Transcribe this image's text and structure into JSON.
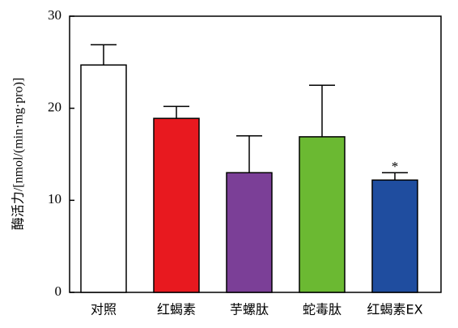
{
  "chart_data": {
    "type": "bar",
    "y_label": "酶活力/[nmol/(min·mg·pro)]",
    "categories": [
      "对照",
      "红蝎素",
      "芋螺肽",
      "蛇毒肽",
      "红蝎素EX"
    ],
    "values": [
      24.7,
      18.9,
      13.0,
      16.9,
      12.2
    ],
    "errors": [
      2.2,
      1.3,
      4.0,
      5.6,
      0.8
    ],
    "colors": [
      "#ffffff",
      "#e8191f",
      "#7b3f97",
      "#6bb932",
      "#1f4d9f"
    ],
    "annotations": [
      {
        "text": "*",
        "category": "红蝎素EX"
      }
    ],
    "ylim": [
      0,
      30
    ],
    "yticks": [
      0,
      10,
      20,
      30
    ]
  }
}
